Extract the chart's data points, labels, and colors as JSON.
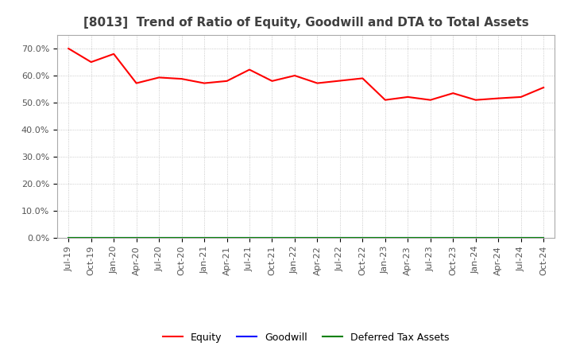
{
  "title": "[8013]  Trend of Ratio of Equity, Goodwill and DTA to Total Assets",
  "x_labels": [
    "Jul-19",
    "Oct-19",
    "Jan-20",
    "Apr-20",
    "Jul-20",
    "Oct-20",
    "Jan-21",
    "Apr-21",
    "Jul-21",
    "Oct-21",
    "Jan-22",
    "Apr-22",
    "Jul-22",
    "Oct-22",
    "Jan-23",
    "Apr-23",
    "Jul-23",
    "Oct-23",
    "Jan-24",
    "Apr-24",
    "Jul-24",
    "Oct-24"
  ],
  "equity": [
    0.7,
    0.65,
    0.68,
    0.572,
    0.593,
    0.588,
    0.572,
    0.58,
    0.622,
    0.58,
    0.6,
    0.572,
    0.581,
    0.59,
    0.51,
    0.521,
    0.51,
    0.535,
    0.51,
    0.516,
    0.521,
    0.556
  ],
  "goodwill": [
    0.0,
    0.0,
    0.0,
    0.0,
    0.0,
    0.0,
    0.0,
    0.0,
    0.0,
    0.0,
    0.0,
    0.0,
    0.0,
    0.0,
    0.0,
    0.0,
    0.0,
    0.0,
    0.0,
    0.0,
    0.0,
    0.0
  ],
  "dta": [
    0.0,
    0.0,
    0.0,
    0.0,
    0.0,
    0.0,
    0.0,
    0.0,
    0.0,
    0.0,
    0.0,
    0.0,
    0.0,
    0.0,
    0.0,
    0.0,
    0.0,
    0.0,
    0.0,
    0.0,
    0.0,
    0.0
  ],
  "equity_color": "#FF0000",
  "goodwill_color": "#0000FF",
  "dta_color": "#008000",
  "background_color": "#FFFFFF",
  "plot_bg_color": "#FFFFFF",
  "grid_color": "#BBBBBB",
  "ylim": [
    0.0,
    0.75
  ],
  "yticks": [
    0.0,
    0.1,
    0.2,
    0.3,
    0.4,
    0.5,
    0.6,
    0.7
  ],
  "ytick_labels": [
    "0.0%",
    "10.0%",
    "20.0%",
    "30.0%",
    "40.0%",
    "50.0%",
    "60.0%",
    "70.0%"
  ],
  "legend_labels": [
    "Equity",
    "Goodwill",
    "Deferred Tax Assets"
  ],
  "title_fontsize": 11,
  "axis_fontsize": 8,
  "legend_fontsize": 9,
  "title_color": "#404040"
}
